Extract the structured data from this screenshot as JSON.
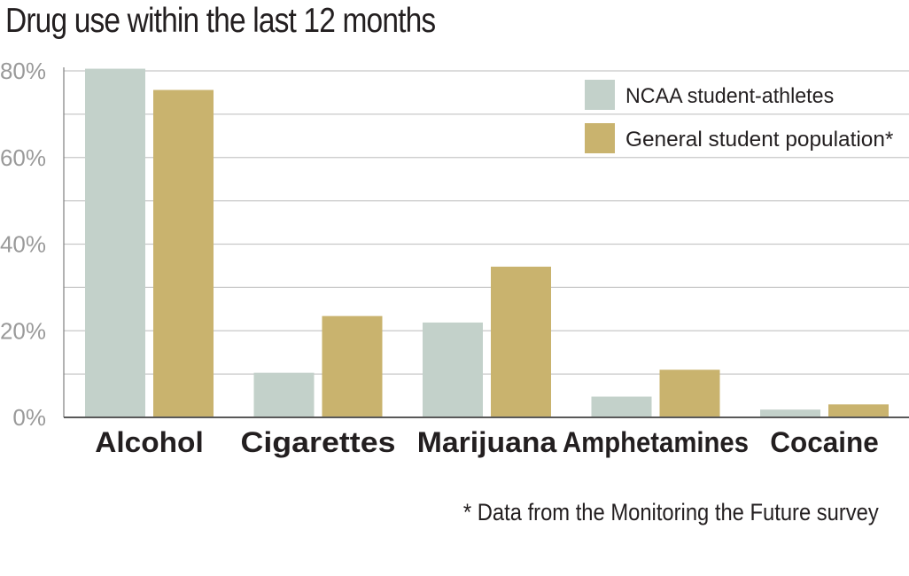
{
  "chart_data": {
    "type": "bar",
    "title": "Drug use within the last 12 months",
    "categories": [
      "Alcohol",
      "Cigarettes",
      "Marijuana",
      "Amphetamines",
      "Cocaine"
    ],
    "series": [
      {
        "name": "NCAA student-athletes",
        "values": [
          80.5,
          10.3,
          21.9,
          4.8,
          1.8
        ]
      },
      {
        "name": "General student population*",
        "values": [
          75.6,
          23.4,
          34.8,
          11.0,
          3.0
        ]
      }
    ],
    "ylim": [
      0,
      80
    ],
    "yticks": [
      0,
      20,
      40,
      60,
      80
    ],
    "ytick_labels": [
      "0%",
      "20%",
      "40%",
      "60%",
      "80%"
    ],
    "minor_gridlines": [
      10,
      30,
      50,
      70
    ],
    "grid": true,
    "legend_position": "top-right",
    "xlabel": "",
    "ylabel": "",
    "footnote": "* Data from the Monitoring the Future survey",
    "colors": {
      "series1": "#c3d1ca",
      "series2": "#c9b36e",
      "grid": "#c8c8c8",
      "axis": "#7f7f7f"
    }
  }
}
